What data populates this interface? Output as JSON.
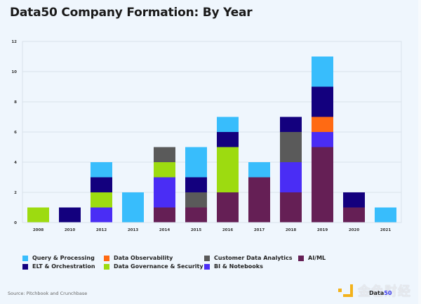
{
  "title": "Data50 Company Formation: By Year",
  "source": "Source: Pitchbook and Crunchbase",
  "watermark": {
    "text": "金色财经",
    "overlay_prefix": "Data",
    "overlay_suffix": "50"
  },
  "chart_data": {
    "type": "bar",
    "stacked": true,
    "title": "Data50 Company Formation: By Year",
    "xlabel": "",
    "ylabel": "",
    "ylim": [
      0,
      12
    ],
    "yticks": [
      0,
      2,
      4,
      6,
      8,
      10,
      12
    ],
    "grid": true,
    "legend_position": "bottom",
    "categories": [
      "2008",
      "2010",
      "2012",
      "2013",
      "2014",
      "2015",
      "2016",
      "2017",
      "2018",
      "2019",
      "2020",
      "2021"
    ],
    "stack_order": [
      "AI/ML",
      "BI & Notebooks",
      "Data Governance & Security",
      "Customer Data Analytics",
      "Data Observability",
      "ELT & Orchestration",
      "Query & Processing"
    ],
    "series": [
      {
        "name": "Query & Processing",
        "color": "#38bdfc",
        "values": [
          0,
          0,
          1,
          2,
          0,
          2,
          1,
          1,
          0,
          2,
          0,
          1
        ]
      },
      {
        "name": "ELT & Orchestration",
        "color": "#13007e",
        "values": [
          0,
          1,
          1,
          0,
          0,
          1,
          1,
          0,
          1,
          2,
          1,
          0
        ]
      },
      {
        "name": "Data Observability",
        "color": "#ff6a13",
        "values": [
          0,
          0,
          0,
          0,
          0,
          0,
          0,
          0,
          0,
          1,
          0,
          0
        ]
      },
      {
        "name": "Data Governance & Security",
        "color": "#9ddb10",
        "values": [
          1,
          0,
          1,
          0,
          1,
          0,
          3,
          0,
          0,
          0,
          0,
          0
        ]
      },
      {
        "name": "Customer Data Analytics",
        "color": "#5a5a5a",
        "values": [
          0,
          0,
          0,
          0,
          1,
          1,
          0,
          0,
          2,
          0,
          0,
          0
        ]
      },
      {
        "name": "BI & Notebooks",
        "color": "#4a2df5",
        "values": [
          0,
          0,
          1,
          0,
          2,
          0,
          0,
          0,
          2,
          1,
          0,
          0
        ]
      },
      {
        "name": "AI/ML",
        "color": "#651f55",
        "values": [
          0,
          0,
          0,
          0,
          1,
          1,
          2,
          3,
          2,
          5,
          1,
          0
        ]
      }
    ]
  },
  "legend": [
    {
      "label": "Query & Processing",
      "color": "#38bdfc"
    },
    {
      "label": "Data Observability",
      "color": "#ff6a13"
    },
    {
      "label": "Customer Data Analytics",
      "color": "#5a5a5a"
    },
    {
      "label": "AI/ML",
      "color": "#651f55"
    },
    {
      "label": "ELT & Orchestration",
      "color": "#13007e"
    },
    {
      "label": "Data Governance & Security",
      "color": "#9ddb10"
    },
    {
      "label": "BI & Notebooks",
      "color": "#4a2df5"
    }
  ]
}
